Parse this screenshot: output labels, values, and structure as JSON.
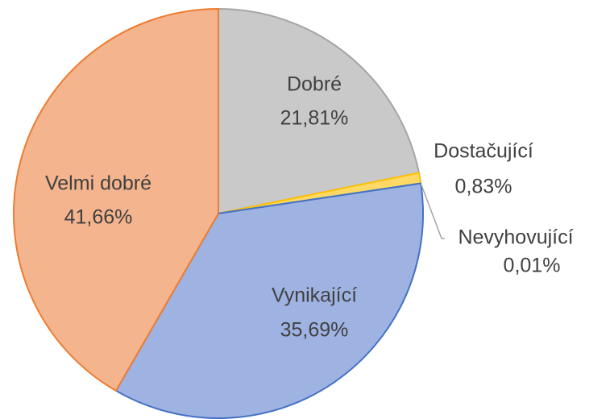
{
  "chart_data": {
    "type": "pie",
    "categories": [
      "Dobré",
      "Dostačující",
      "Nevyhovující",
      "Vynikající",
      "Velmi dobré"
    ],
    "values": [
      21.81,
      0.83,
      0.01,
      35.69,
      41.66
    ],
    "value_labels": [
      "21,81%",
      "0,83%",
      "0,01%",
      "35,69%",
      "41,66%"
    ],
    "colors": [
      "#c9c9c9",
      "#ffd966",
      "#9dc3e6",
      "#9fb3e3",
      "#f4b48e"
    ],
    "stroke_colors": [
      "#a5a5a5",
      "#ffc000",
      "#5b9bd5",
      "#4472c4",
      "#ed7d31"
    ]
  }
}
